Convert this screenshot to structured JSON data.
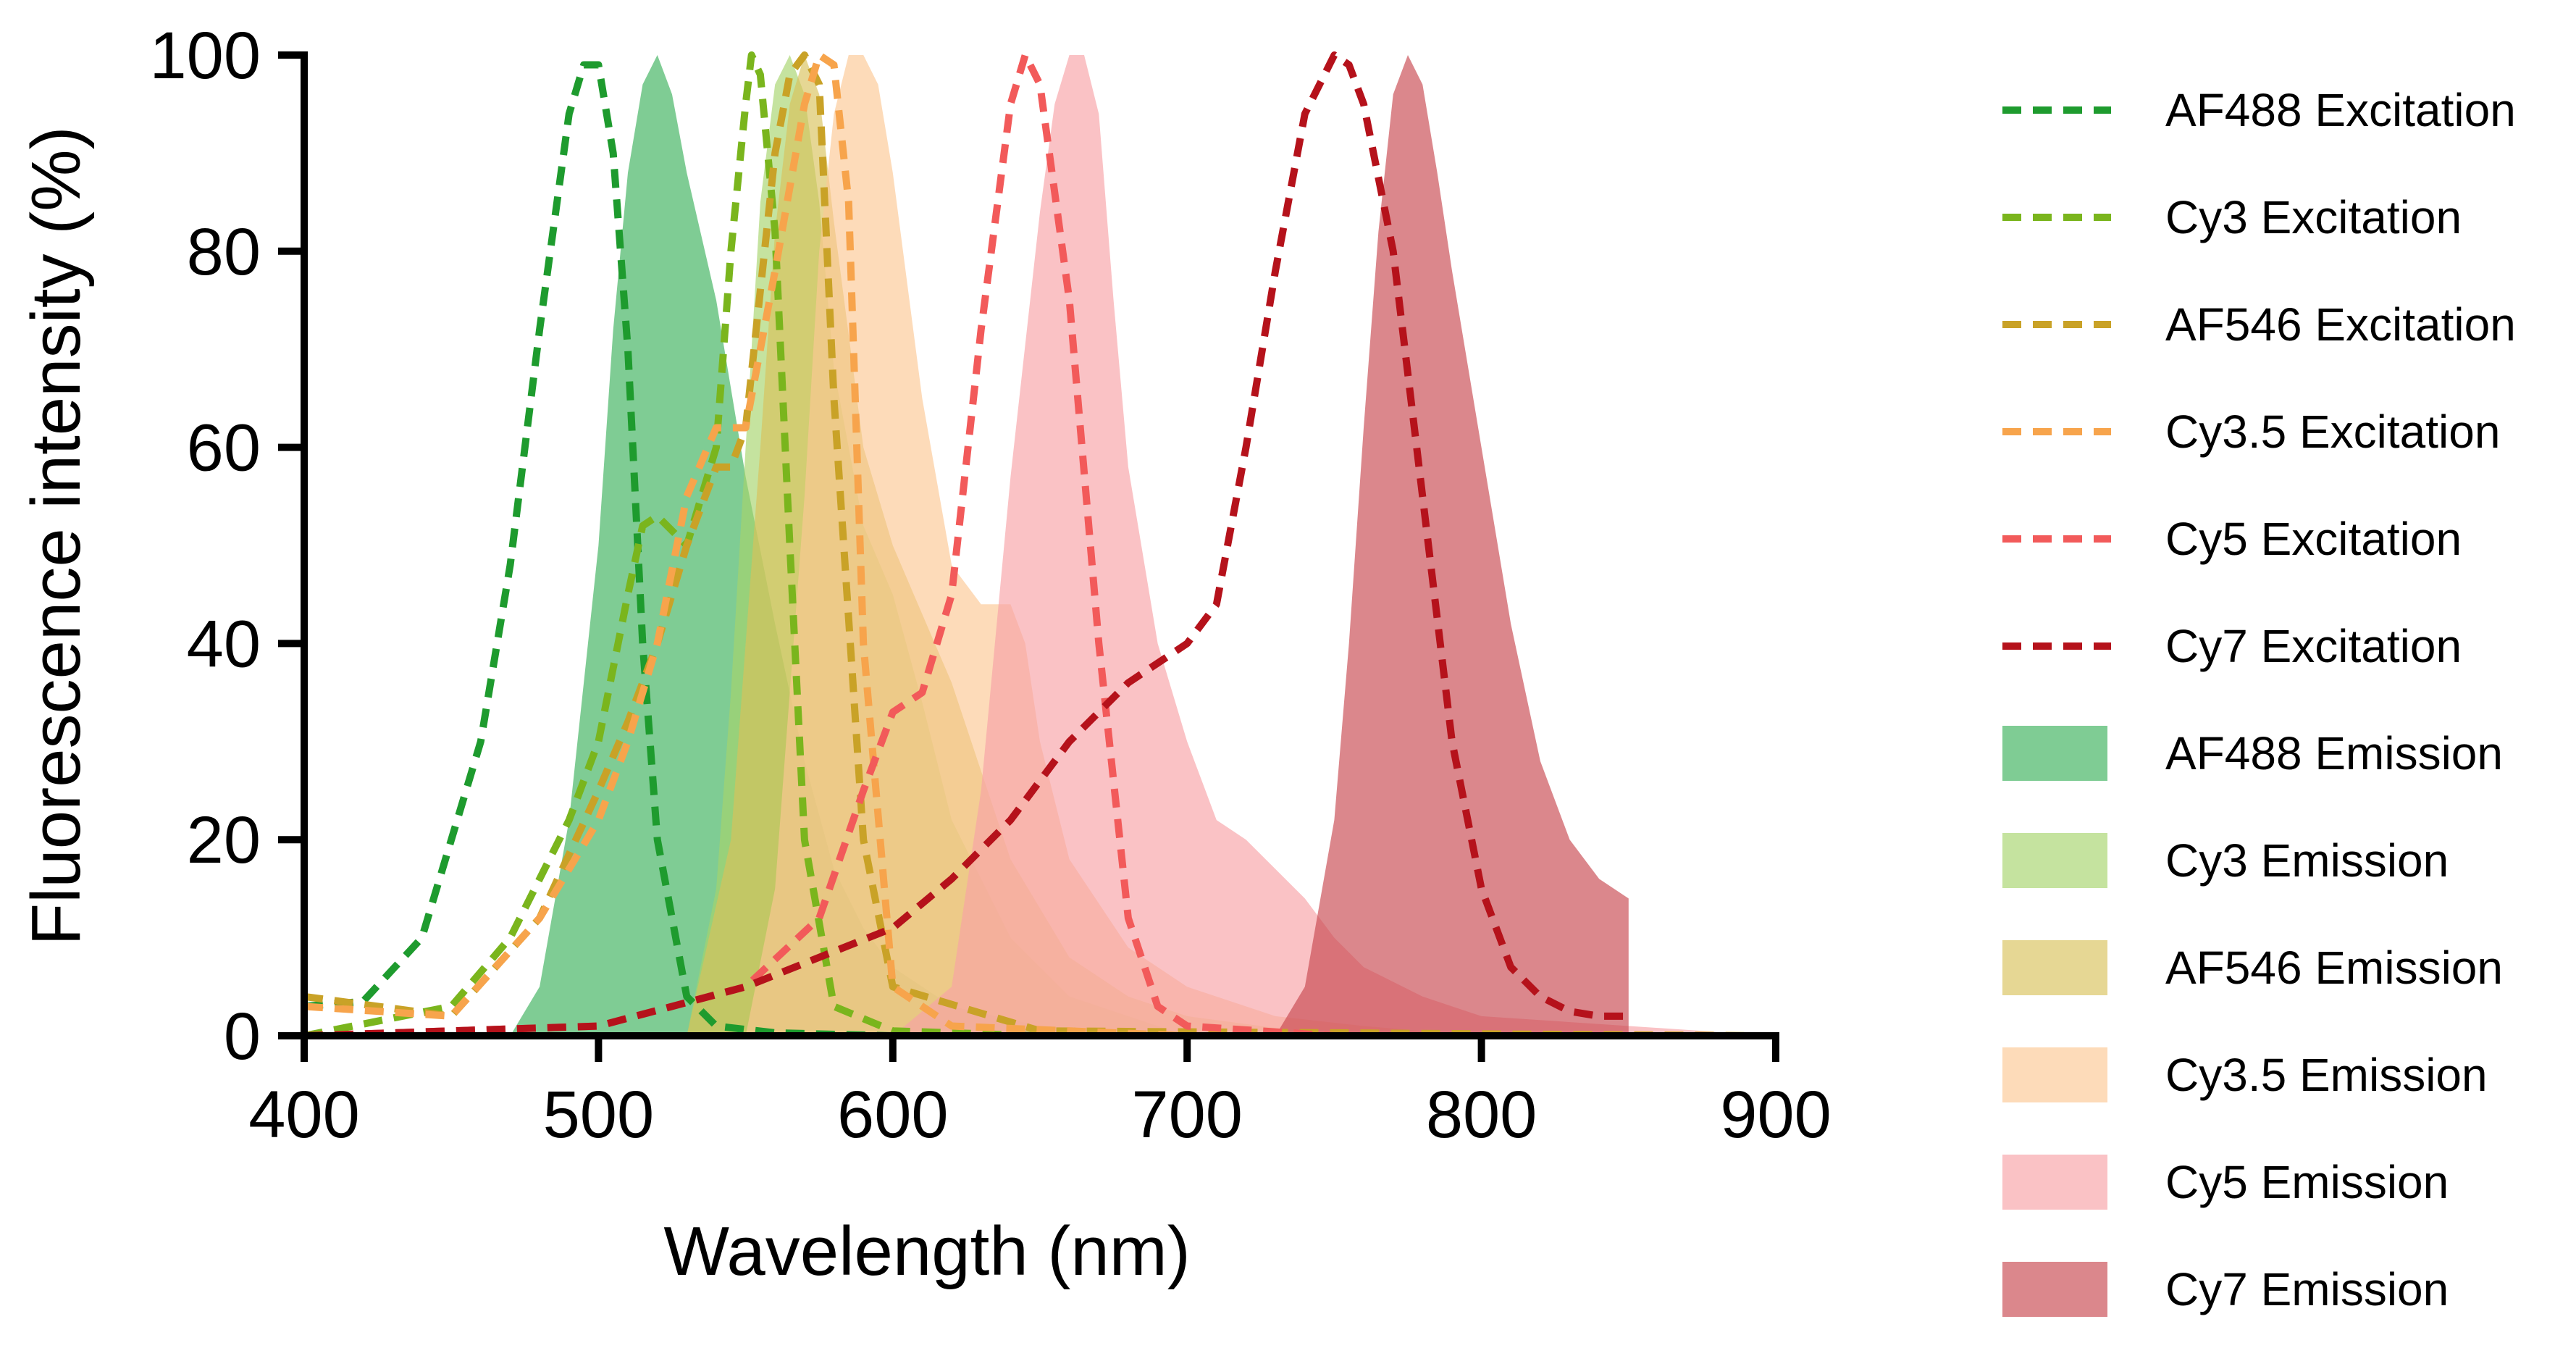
{
  "chart_data": {
    "type": "area",
    "title": "",
    "xlabel": "Wavelength (nm)",
    "ylabel": "Fluorescence intensity (%)",
    "xlim": [
      400,
      900
    ],
    "ylim": [
      0,
      100
    ],
    "xticks": [
      400,
      500,
      600,
      700,
      800,
      900
    ],
    "yticks": [
      0,
      20,
      40,
      60,
      80,
      100
    ],
    "grid": false,
    "legend_position": "right",
    "series": [
      {
        "name": "AF488 Excitation",
        "kind": "excitation",
        "style": "dashed",
        "color": "#1e9b2e",
        "x": [
          400,
          420,
          440,
          460,
          470,
          480,
          490,
          495,
          500,
          505,
          510,
          515,
          520,
          530,
          540,
          560,
          600,
          700,
          900
        ],
        "y": [
          3,
          3.5,
          10,
          30,
          48,
          72,
          94,
          99,
          99,
          90,
          70,
          40,
          20,
          4,
          1,
          0.3,
          0,
          0,
          0
        ]
      },
      {
        "name": "Cy3 Excitation",
        "kind": "excitation",
        "style": "dashed",
        "color": "#7ab51d",
        "x": [
          400,
          450,
          470,
          490,
          500,
          510,
          515,
          520,
          530,
          540,
          545,
          550,
          552,
          555,
          560,
          565,
          570,
          580,
          600,
          650,
          900
        ],
        "y": [
          0,
          3,
          10,
          22,
          30,
          45,
          52,
          53,
          50,
          60,
          80,
          95,
          100,
          98,
          82,
          50,
          20,
          3,
          0.5,
          0,
          0
        ]
      },
      {
        "name": "AF546 Excitation",
        "kind": "excitation",
        "style": "dashed",
        "color": "#c9a227",
        "x": [
          400,
          450,
          480,
          500,
          510,
          520,
          530,
          540,
          545,
          550,
          560,
          565,
          570,
          575,
          580,
          590,
          600,
          650,
          900
        ],
        "y": [
          4,
          2,
          12,
          25,
          32,
          40,
          50,
          58,
          58,
          62,
          90,
          98,
          100,
          97,
          65,
          20,
          5,
          0.5,
          0
        ]
      },
      {
        "name": "Cy3.5 Excitation",
        "kind": "excitation",
        "style": "dashed",
        "color": "#f7a44c",
        "x": [
          400,
          450,
          480,
          500,
          510,
          520,
          530,
          540,
          550,
          560,
          570,
          575,
          580,
          585,
          590,
          600,
          620,
          700,
          900
        ],
        "y": [
          3,
          2,
          12,
          22,
          30,
          40,
          55,
          62,
          62,
          78,
          95,
          100,
          99,
          85,
          40,
          5,
          1,
          0,
          0
        ]
      },
      {
        "name": "Cy5 Excitation",
        "kind": "excitation",
        "style": "dashed",
        "color": "#f25a5a",
        "x": [
          400,
          500,
          550,
          575,
          590,
          600,
          610,
          620,
          630,
          640,
          645,
          650,
          660,
          670,
          680,
          690,
          700,
          750,
          900
        ],
        "y": [
          0,
          1,
          5,
          12,
          25,
          33,
          35,
          45,
          72,
          95,
          100,
          97,
          75,
          40,
          12,
          3,
          1,
          0,
          0
        ]
      },
      {
        "name": "Cy7 Excitation",
        "kind": "excitation",
        "style": "dashed",
        "color": "#b5121b",
        "x": [
          400,
          500,
          550,
          600,
          620,
          640,
          660,
          680,
          700,
          710,
          720,
          730,
          740,
          750,
          755,
          760,
          770,
          780,
          790,
          800,
          810,
          820,
          830,
          840,
          850
        ],
        "y": [
          0,
          1,
          5,
          11,
          16,
          22,
          30,
          36,
          40,
          44,
          60,
          78,
          94,
          100,
          99,
          95,
          80,
          55,
          30,
          15,
          7,
          4,
          2.5,
          2,
          2
        ]
      },
      {
        "name": "AF488 Emission",
        "kind": "emission",
        "style": "filled",
        "color": "#3bb05a",
        "x": [
          400,
          470,
          480,
          490,
          500,
          505,
          510,
          515,
          520,
          525,
          530,
          540,
          550,
          560,
          570,
          580,
          590,
          600,
          620,
          650,
          700,
          900
        ],
        "y": [
          0,
          0,
          5,
          22,
          50,
          72,
          88,
          97,
          100,
          96,
          88,
          75,
          57,
          42,
          28,
          17,
          11,
          7,
          3,
          1,
          0,
          0
        ]
      },
      {
        "name": "Cy3 Emission",
        "kind": "emission",
        "style": "filled",
        "color": "#a6d46b",
        "x": [
          400,
          530,
          540,
          545,
          550,
          555,
          560,
          565,
          570,
          575,
          580,
          590,
          600,
          610,
          620,
          640,
          660,
          700,
          900
        ],
        "y": [
          0,
          0,
          15,
          35,
          60,
          85,
          97,
          100,
          96,
          85,
          68,
          52,
          45,
          34,
          22,
          10,
          4,
          0,
          0
        ]
      },
      {
        "name": "AF546 Emission",
        "kind": "emission",
        "style": "filled",
        "color": "#d9c25a",
        "x": [
          400,
          530,
          545,
          555,
          560,
          565,
          570,
          575,
          580,
          590,
          600,
          610,
          620,
          630,
          640,
          660,
          680,
          700,
          750,
          900
        ],
        "y": [
          0,
          0,
          20,
          60,
          82,
          95,
          100,
          96,
          83,
          60,
          50,
          43,
          36,
          27,
          18,
          8,
          4,
          2,
          0,
          0
        ]
      },
      {
        "name": "Cy3.5 Emission",
        "kind": "emission",
        "style": "filled",
        "color": "#fcc794",
        "x": [
          400,
          550,
          560,
          570,
          575,
          580,
          585,
          590,
          595,
          600,
          610,
          620,
          630,
          640,
          645,
          650,
          660,
          680,
          700,
          730,
          760,
          800,
          900
        ],
        "y": [
          0,
          0,
          15,
          55,
          80,
          94,
          100,
          100,
          97,
          88,
          65,
          48,
          44,
          44,
          40,
          30,
          18,
          9,
          5,
          2,
          1,
          0,
          0
        ]
      },
      {
        "name": "Cy5 Emission",
        "kind": "emission",
        "style": "filled",
        "color": "#f8a1a6",
        "x": [
          400,
          600,
          620,
          630,
          640,
          650,
          655,
          660,
          665,
          670,
          675,
          680,
          690,
          700,
          710,
          720,
          730,
          740,
          750,
          760,
          780,
          800,
          900
        ],
        "y": [
          0,
          0,
          5,
          25,
          57,
          84,
          95,
          100,
          100,
          94,
          75,
          58,
          40,
          30,
          22,
          20,
          17,
          14,
          10,
          7,
          4,
          2,
          0
        ]
      },
      {
        "name": "Cy7 Emission",
        "kind": "emission",
        "style": "filled",
        "color": "#c8464e",
        "x": [
          400,
          730,
          740,
          750,
          755,
          760,
          765,
          770,
          775,
          780,
          785,
          790,
          800,
          810,
          820,
          830,
          840,
          850
        ],
        "y": [
          0,
          0,
          5,
          22,
          40,
          62,
          82,
          96,
          100,
          97,
          88,
          78,
          60,
          42,
          28,
          20,
          16,
          14
        ]
      }
    ]
  }
}
